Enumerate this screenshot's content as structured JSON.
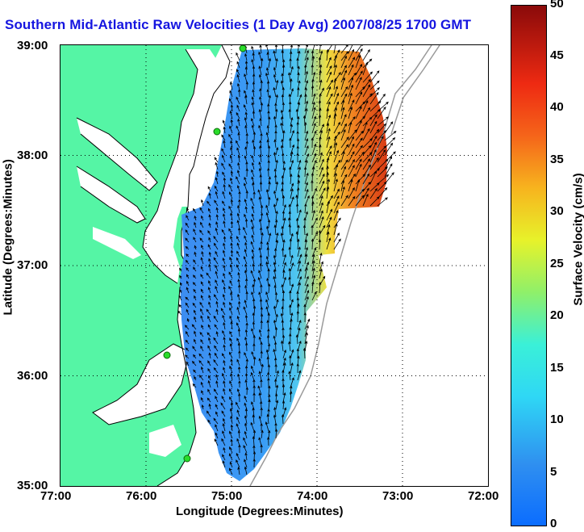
{
  "title": "Southern Mid-Atlantic Raw Velocities (1 Day Avg) 2007/08/25 1700 GMT",
  "map": {
    "type": "surface-current-map",
    "x_axis": {
      "label": "Longitude (Degrees:Minutes)",
      "range_deg_west": [
        77,
        72
      ],
      "ticks": [
        "77:00",
        "76:00",
        "75:00",
        "74:00",
        "73:00",
        "72:00"
      ]
    },
    "y_axis": {
      "label": "Latitude (Degrees:Minutes)",
      "range_deg_north": [
        35,
        39
      ],
      "ticks": [
        "39:00",
        "38:00",
        "37:00",
        "36:00",
        "35:00"
      ]
    },
    "grid": "dotted",
    "land_color": "#55f5a5",
    "coastline_color": "#000000",
    "bathymetry_color": "#9a9a9a",
    "station_marker_color": "#2adc2a",
    "vector_color": "#000000"
  },
  "colorbar": {
    "label": "Surface Velocity (cm/s)",
    "ticks": [
      "50",
      "45",
      "40",
      "35",
      "30",
      "25",
      "20",
      "15",
      "10",
      "5",
      "0"
    ],
    "range": [
      0,
      50
    ],
    "colormap": "jet"
  }
}
